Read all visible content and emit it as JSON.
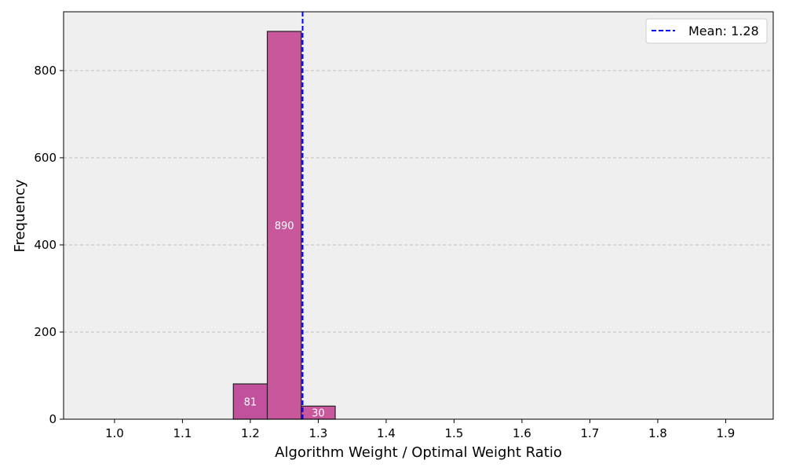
{
  "chart_data": {
    "type": "bar",
    "title": "",
    "xlabel": "Algorithm Weight / Optimal Weight Ratio",
    "ylabel": "Frequency",
    "xlim": [
      0.925,
      1.97
    ],
    "ylim": [
      0,
      935
    ],
    "x_ticks": [
      1.0,
      1.1,
      1.2,
      1.3,
      1.4,
      1.5,
      1.6,
      1.7,
      1.8,
      1.9
    ],
    "x_tick_labels": [
      "1.0",
      "1.1",
      "1.2",
      "1.3",
      "1.4",
      "1.5",
      "1.6",
      "1.7",
      "1.8",
      "1.9"
    ],
    "y_ticks": [
      0,
      200,
      400,
      600,
      800
    ],
    "y_tick_labels": [
      "0",
      "200",
      "400",
      "600",
      "800"
    ],
    "grid": "y-dashed",
    "bin_width": 0.05,
    "bins": [
      {
        "start": 0.975,
        "value": 0,
        "label": ""
      },
      {
        "start": 1.025,
        "value": 0,
        "label": ""
      },
      {
        "start": 1.075,
        "value": 0,
        "label": ""
      },
      {
        "start": 1.125,
        "value": 0,
        "label": ""
      },
      {
        "start": 1.175,
        "value": 81,
        "label": "81",
        "color": "#c1519c"
      },
      {
        "start": 1.225,
        "value": 890,
        "label": "890",
        "color": "#c9579c"
      },
      {
        "start": 1.275,
        "value": 30,
        "label": "30",
        "color": "#c9579c"
      },
      {
        "start": 1.325,
        "value": 0,
        "label": ""
      },
      {
        "start": 1.375,
        "value": 0,
        "label": ""
      },
      {
        "start": 1.425,
        "value": 0,
        "label": ""
      },
      {
        "start": 1.475,
        "value": 0,
        "label": ""
      },
      {
        "start": 1.525,
        "value": 0,
        "label": ""
      },
      {
        "start": 1.575,
        "value": 0,
        "label": ""
      },
      {
        "start": 1.625,
        "value": 0,
        "label": ""
      },
      {
        "start": 1.675,
        "value": 0,
        "label": ""
      },
      {
        "start": 1.725,
        "value": 0,
        "label": ""
      },
      {
        "start": 1.775,
        "value": 0,
        "label": ""
      },
      {
        "start": 1.825,
        "value": 0,
        "label": ""
      },
      {
        "start": 1.875,
        "value": 0,
        "label": ""
      }
    ],
    "mean_line": {
      "value": 1.277,
      "label": "Mean: 1.28",
      "color": "#0000ff",
      "style": "dashed"
    },
    "legend": {
      "placement": "top-right",
      "entries": [
        "Mean: 1.28"
      ]
    },
    "colors": {
      "plot_background": "#efefef",
      "bar_edge": "#222222",
      "grid": "#bfbfbf"
    }
  }
}
